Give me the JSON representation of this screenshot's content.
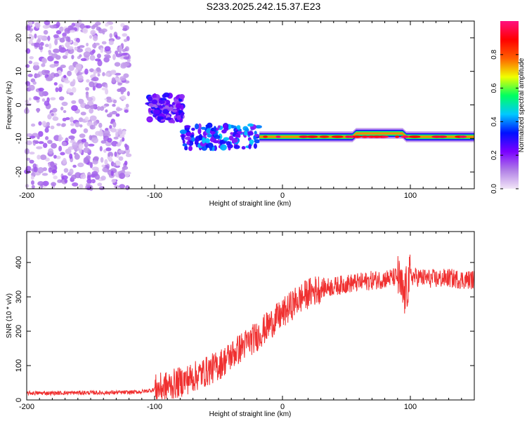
{
  "title": "S233.2025.242.15.37.E23",
  "chart_data": [
    {
      "type": "heatmap",
      "name": "spectrogram",
      "xlabel": "Height of straight line (km)",
      "ylabel": "Frequency (Hz)",
      "xlim": [
        -200,
        150
      ],
      "ylim": [
        -25,
        25
      ],
      "x_ticks": [
        -200,
        -100,
        0,
        100
      ],
      "y_ticks": [
        -20,
        -10,
        0,
        10,
        20
      ],
      "colorbar": {
        "label": "Normalized spectral amplitude",
        "range": [
          0,
          1
        ],
        "ticks": [
          "0.0",
          "0.2",
          "0.4",
          "0.6",
          "0.8"
        ],
        "tick_values": [
          0.0,
          0.2,
          0.4,
          0.6,
          0.8
        ],
        "colors": [
          "#f2e6f7",
          "#b07ee6",
          "#7a00ff",
          "#0010ff",
          "#00c8ff",
          "#00ff60",
          "#f0ff00",
          "#ff6000",
          "#ff0000",
          "#ff1080"
        ]
      },
      "description_regions": [
        {
          "x_range": [
            -200,
            -120
          ],
          "freq_range": [
            -25,
            25
          ],
          "amplitude": 0.05,
          "pattern": "scattered noise"
        },
        {
          "x_range": [
            -105,
            -78
          ],
          "freq_range": [
            -5,
            3
          ],
          "amplitude": 0.25
        },
        {
          "x_range": [
            -78,
            -18
          ],
          "freq_range": [
            -13,
            -6
          ],
          "amplitude": 0.35
        },
        {
          "x_range": [
            -18,
            150
          ],
          "freq_range": [
            -11,
            -8
          ],
          "center_freq": -9.5,
          "amplitude": 0.7
        }
      ]
    },
    {
      "type": "line",
      "name": "snr",
      "xlabel": "Height of straight line (km)",
      "ylabel": "SNR (10 * v/v)",
      "xlim": [
        -200,
        150
      ],
      "ylim": [
        0,
        490
      ],
      "x_ticks": [
        -200,
        -100,
        0,
        100
      ],
      "y_ticks": [
        0,
        100,
        200,
        300,
        400
      ],
      "color": "#f03030",
      "series": [
        {
          "name": "SNR",
          "x": [
            -200,
            -180,
            -160,
            -140,
            -120,
            -110,
            -100,
            -90,
            -80,
            -70,
            -60,
            -50,
            -40,
            -30,
            -20,
            -10,
            0,
            10,
            20,
            30,
            40,
            50,
            60,
            70,
            80,
            90,
            95,
            100,
            110,
            120,
            130,
            140,
            150
          ],
          "values": [
            20,
            20,
            21,
            21,
            22,
            24,
            30,
            40,
            52,
            66,
            82,
            100,
            130,
            160,
            185,
            220,
            250,
            285,
            310,
            325,
            330,
            338,
            342,
            348,
            352,
            358,
            300,
            360,
            355,
            352,
            355,
            350,
            350
          ]
        }
      ]
    }
  ]
}
